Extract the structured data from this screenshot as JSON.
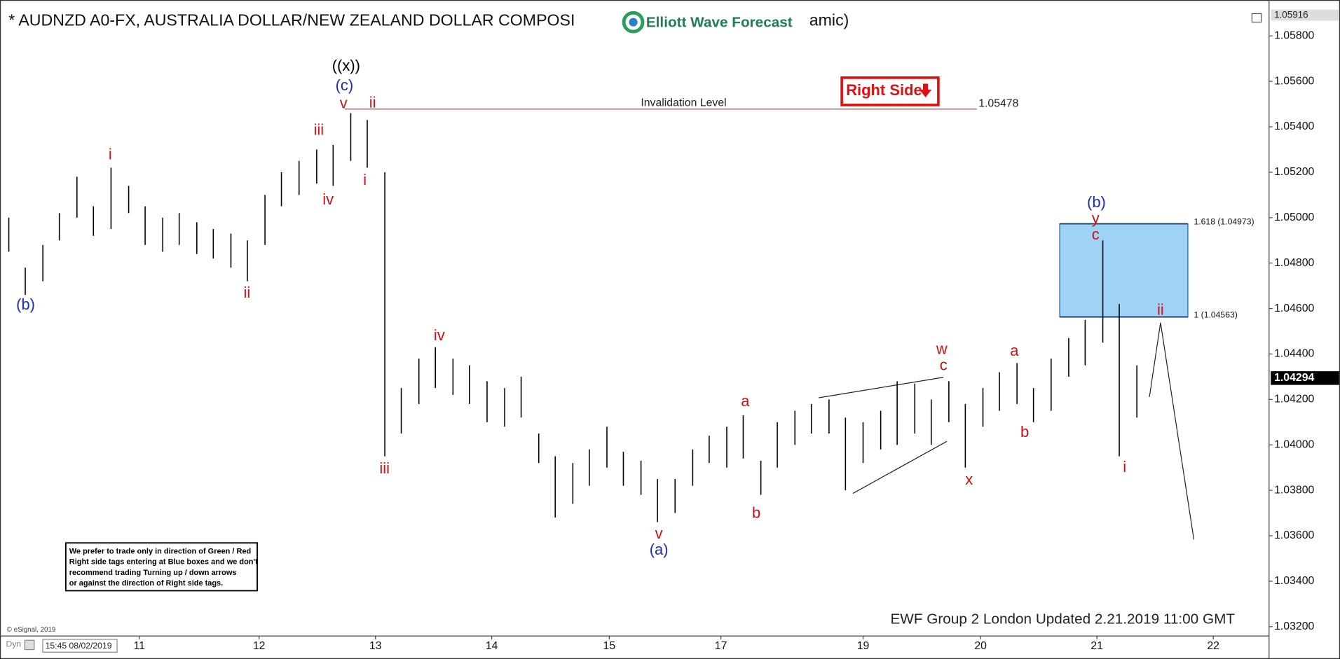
{
  "chart_data": {
    "type": "ohlc",
    "title": "* AUDNZD A0-FX, AUSTRALIA DOLLAR/NEW ZEALAND DOLLAR COMPOSI",
    "title_tail": "amic)",
    "logo_text": "Elliott Wave Forecast",
    "bar_color": "#000000",
    "ylim": [
      1.03159,
      1.05958
    ],
    "yticks": [
      {
        "value": 1.058,
        "label": "1.05800"
      },
      {
        "value": 1.056,
        "label": "1.05600"
      },
      {
        "value": 1.054,
        "label": "1.05400"
      },
      {
        "value": 1.052,
        "label": "1.05200"
      },
      {
        "value": 1.05,
        "label": "1.05000"
      },
      {
        "value": 1.048,
        "label": "1.04800"
      },
      {
        "value": 1.046,
        "label": "1.04600"
      },
      {
        "value": 1.044,
        "label": "1.04400"
      },
      {
        "value": 1.042,
        "label": "1.04200"
      },
      {
        "value": 1.04,
        "label": "1.04000"
      },
      {
        "value": 1.038,
        "label": "1.03800"
      },
      {
        "value": 1.036,
        "label": "1.03600"
      },
      {
        "value": 1.034,
        "label": "1.03400"
      },
      {
        "value": 1.032,
        "label": "1.03200"
      }
    ],
    "xlim": [
      -0.185,
      10.615
    ],
    "xticks": [
      {
        "value": 1,
        "label": "11"
      },
      {
        "value": 2.02,
        "label": "12"
      },
      {
        "value": 3.01,
        "label": "13"
      },
      {
        "value": 4.0,
        "label": "14"
      },
      {
        "value": 5.0,
        "label": "15"
      },
      {
        "value": 5.95,
        "label": "17"
      },
      {
        "value": 7.16,
        "label": "19"
      },
      {
        "value": 8.16,
        "label": "20"
      },
      {
        "value": 9.15,
        "label": "21"
      },
      {
        "value": 10.14,
        "label": "22"
      }
    ],
    "series": [
      {
        "x": [
          -0.11,
          0.03,
          0.18,
          0.32,
          0.47,
          0.61,
          0.76,
          0.91,
          1.05,
          1.2,
          1.34,
          1.49,
          1.63,
          1.78,
          1.92,
          2.07,
          2.21,
          2.36,
          2.51,
          2.65,
          2.8,
          2.94,
          3.09,
          3.23,
          3.38,
          3.52,
          3.67,
          3.81,
          3.96,
          4.11,
          4.25,
          4.4,
          4.54,
          4.69,
          4.83,
          4.98,
          5.12,
          5.27,
          5.41,
          5.56,
          5.71,
          5.85,
          6.0,
          6.14,
          6.29,
          6.43,
          6.58,
          6.72,
          6.87,
          7.01,
          7.16,
          7.31,
          7.45,
          7.6,
          7.74,
          7.89,
          8.03,
          8.18,
          8.32,
          8.47,
          8.61,
          8.76,
          8.91,
          9.05,
          9.2,
          9.34,
          9.49
        ],
        "high": [
          1.05,
          1.0478,
          1.0488,
          1.0502,
          1.0518,
          1.0505,
          1.0522,
          1.0514,
          1.0505,
          1.05,
          1.0502,
          1.0498,
          1.0495,
          1.0493,
          1.049,
          1.051,
          1.052,
          1.0525,
          1.053,
          1.0532,
          1.0546,
          1.0543,
          1.052,
          1.0425,
          1.0438,
          1.0443,
          1.0438,
          1.0435,
          1.0428,
          1.0425,
          1.043,
          1.0405,
          1.0395,
          1.0392,
          1.0398,
          1.0408,
          1.0397,
          1.0393,
          1.0385,
          1.0385,
          1.0398,
          1.0404,
          1.0408,
          1.0413,
          1.0393,
          1.041,
          1.0415,
          1.0418,
          1.042,
          1.0412,
          1.041,
          1.0415,
          1.0428,
          1.0427,
          1.042,
          1.0428,
          1.0418,
          1.0425,
          1.0432,
          1.0436,
          1.0425,
          1.0438,
          1.0447,
          1.0455,
          1.049,
          1.0462,
          1.0435
        ],
        "low": [
          1.0485,
          1.0466,
          1.0472,
          1.049,
          1.05,
          1.0492,
          1.0495,
          1.0502,
          1.0488,
          1.0485,
          1.0488,
          1.0484,
          1.0482,
          1.0478,
          1.0472,
          1.0488,
          1.0505,
          1.051,
          1.0515,
          1.0514,
          1.0525,
          1.0522,
          1.0395,
          1.0405,
          1.0418,
          1.0425,
          1.0422,
          1.0418,
          1.041,
          1.0408,
          1.0412,
          1.0392,
          1.0368,
          1.0374,
          1.0382,
          1.039,
          1.0382,
          1.0378,
          1.0366,
          1.037,
          1.0382,
          1.0392,
          1.039,
          1.0394,
          1.0378,
          1.039,
          1.04,
          1.0405,
          1.0405,
          1.038,
          1.0392,
          1.0398,
          1.04,
          1.0405,
          1.04,
          1.041,
          1.039,
          1.0408,
          1.0415,
          1.0418,
          1.041,
          1.0415,
          1.043,
          1.0435,
          1.0445,
          1.0395,
          1.0412
        ]
      }
    ],
    "high_tag": 1.05916,
    "last_price": 1.04294,
    "invalidation": {
      "label": "Invalidation Level",
      "value": 1.05478,
      "color": "#e03030"
    },
    "right_side_tag": "Right Side",
    "fib_box": {
      "color": "#9fd3f5",
      "levels": [
        {
          "label": "1.618 (1.04973)",
          "value": 1.04973
        },
        {
          "label": "1 (1.04563)",
          "value": 1.04563
        }
      ]
    },
    "wave_labels": [
      {
        "text": "((x))",
        "color": "#000000"
      },
      {
        "text": "(c)",
        "color": "#1a2db8"
      },
      {
        "text": "v",
        "color": "#d01010"
      },
      {
        "text": "ii",
        "color": "#d01010"
      },
      {
        "text": "iii",
        "color": "#d01010"
      },
      {
        "text": "iv",
        "color": "#d01010"
      },
      {
        "text": "i",
        "color": "#d01010"
      },
      {
        "text": "i",
        "color": "#d01010"
      },
      {
        "text": "ii",
        "color": "#d01010"
      },
      {
        "text": "(b)",
        "color": "#1a2db8"
      },
      {
        "text": "iii",
        "color": "#d01010"
      },
      {
        "text": "iv",
        "color": "#d01010"
      },
      {
        "text": "v",
        "color": "#d01010"
      },
      {
        "text": "(a)",
        "color": "#1a2db8"
      },
      {
        "text": "a",
        "color": "#d01010"
      },
      {
        "text": "b",
        "color": "#d01010"
      },
      {
        "text": "w",
        "color": "#d01010"
      },
      {
        "text": "c",
        "color": "#d01010"
      },
      {
        "text": "x",
        "color": "#d01010"
      },
      {
        "text": "a",
        "color": "#d01010"
      },
      {
        "text": "b",
        "color": "#d01010"
      },
      {
        "text": "(b)",
        "color": "#1a2db8"
      },
      {
        "text": "y",
        "color": "#d01010"
      },
      {
        "text": "c",
        "color": "#d01010"
      },
      {
        "text": "ii",
        "color": "#d01010"
      },
      {
        "text": "i",
        "color": "#d01010"
      }
    ],
    "disclaimer": [
      "We prefer to trade only in direction of Green / Red",
      "Right side tags entering at Blue boxes and we don't",
      "recommend trading Turning up / down arrows",
      "or against the direction of Right side tags."
    ],
    "copyright": "© eSignal, 2019",
    "footer": "EWF Group 2 London Updated 2.21.2019 11:00 GMT",
    "start_time": "15:45 08/02/2019",
    "mode": "Dyn"
  }
}
